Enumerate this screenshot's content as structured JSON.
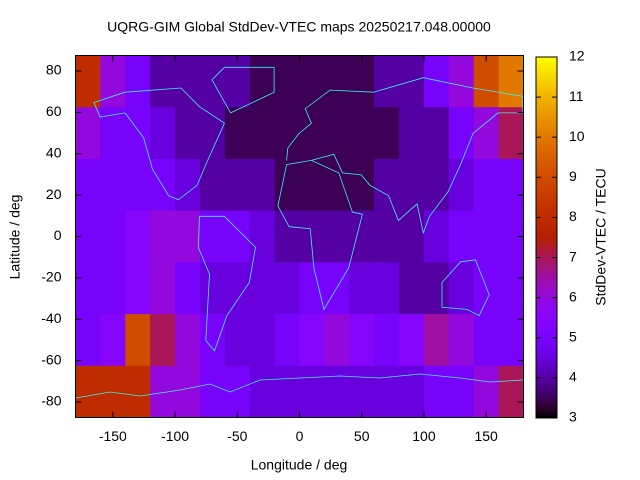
{
  "chart_data": {
    "type": "heatmap",
    "title": "UQRG-GIM Global StdDev-VTEC maps 20250217.048.00000",
    "xlabel": "Longitude / deg",
    "ylabel": "Latitude / deg",
    "colorbar_label": "StdDev-VTEC / TECU",
    "colormap": "gnuplot",
    "x": [
      -170,
      -150,
      -130,
      -110,
      -90,
      -70,
      -50,
      -30,
      -10,
      10,
      30,
      50,
      70,
      90,
      110,
      130,
      150,
      170
    ],
    "y": [
      75,
      50,
      25,
      0,
      -25,
      -50,
      -75
    ],
    "z": [
      [
        8,
        6,
        5,
        4,
        4,
        4,
        4,
        3.5,
        3.5,
        3.5,
        3.5,
        3.5,
        4,
        4,
        5,
        6,
        9,
        10
      ],
      [
        6,
        5,
        5,
        4.5,
        4,
        4,
        3.5,
        3.5,
        3.5,
        3.5,
        3.5,
        3.5,
        3.5,
        4,
        4,
        5,
        6,
        7
      ],
      [
        5,
        5,
        5,
        5,
        4.5,
        4,
        4,
        4,
        3.5,
        3.5,
        3.5,
        3.5,
        4,
        4,
        4,
        4.5,
        5,
        5
      ],
      [
        5,
        5,
        5.5,
        6,
        6,
        5,
        5,
        4.5,
        4,
        4,
        4,
        4,
        4,
        4,
        4.5,
        5,
        5,
        5
      ],
      [
        5,
        5,
        5.5,
        6,
        5,
        4.5,
        4.5,
        4.5,
        4.5,
        5,
        5,
        4.5,
        4.5,
        4,
        4,
        4.5,
        5,
        5
      ],
      [
        5,
        5.5,
        9,
        7,
        6,
        5,
        4.5,
        4.5,
        5,
        5.5,
        6,
        5.5,
        5,
        5.5,
        6.5,
        6,
        5,
        5
      ],
      [
        8,
        8,
        8,
        6,
        6,
        5,
        5,
        4.5,
        4.5,
        4.5,
        4.5,
        4.5,
        4.5,
        4.5,
        5,
        5,
        6,
        7
      ]
    ],
    "xlim": [
      -180,
      180
    ],
    "ylim": [
      -87.5,
      87.5
    ],
    "zlim": [
      3,
      12
    ],
    "xticks": [
      -150,
      -100,
      -50,
      0,
      50,
      100,
      150
    ],
    "yticks": [
      -80,
      -60,
      -40,
      -20,
      0,
      20,
      40,
      60,
      80
    ],
    "zticks": [
      3,
      4,
      5,
      6,
      7,
      8,
      9,
      10,
      11,
      12
    ]
  }
}
